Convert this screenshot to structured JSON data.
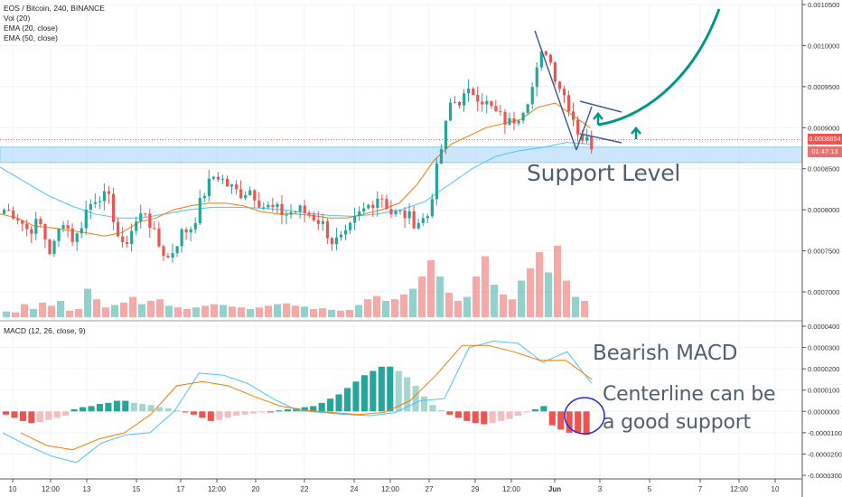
{
  "legend": {
    "symbol": "EOS / Bitcoin, 240, BINANCE",
    "indicators": [
      "Vol (20)",
      "EMA (20, close)",
      "EMA (50, close)"
    ]
  },
  "macd_legend": "MACD (12, 26, close, 9)",
  "annotations": {
    "support": "Support Level",
    "bearish": "Bearish MACD",
    "centerline_1": "Centerline can be",
    "centerline_2": "a good support"
  },
  "price_tags": {
    "last_price": "0.0008854",
    "countdown": "01:47:13"
  },
  "colors": {
    "up": "#26a69a",
    "down": "#ef5350",
    "ema20": "#f57c00",
    "ema50": "#4fc3f7",
    "support_zone": "#bbdefb",
    "drawing": "#009688",
    "trendline": "#3d6098"
  },
  "chart_data": [
    {
      "type": "candlestick",
      "title": "EOS / Bitcoin, 240, BINANCE",
      "y_ticks": [
        "0.0010500",
        "0.0010000",
        "0.0009500",
        "0.0009000",
        "0.0008500",
        "0.0008000",
        "0.0007500",
        "0.0007000"
      ],
      "ylim": [
        0.00068,
        0.00105
      ],
      "x_ticks": [
        "10",
        "12:00",
        "13",
        "15",
        "17",
        "12:00",
        "20",
        "22",
        "24",
        "12:00",
        "27",
        "29",
        "12:00",
        "Jun",
        "3",
        "5",
        "7",
        "12:00",
        "10"
      ],
      "support_zone": [
        0.000862,
        0.000872
      ],
      "ohlc_anchor_closes": [
        0.0008,
        0.000795,
        0.000775,
        0.000785,
        0.000745,
        0.00079,
        0.00076,
        0.0008,
        0.00082,
        0.00081,
        0.00075,
        0.00078,
        0.0008,
        0.00076,
        0.00074,
        0.00077,
        0.00078,
        0.00082,
        0.000845,
        0.00083,
        0.00082,
        0.000825,
        0.000805,
        0.0008,
        0.000795,
        0.0008,
        0.000795,
        0.000785,
        0.00076,
        0.000765,
        0.00079,
        0.000805,
        0.00082,
        0.000795,
        0.000795,
        0.000785,
        0.00079,
        0.00086,
        0.00093,
        0.000935,
        0.000945,
        0.00093,
        0.000915,
        0.000905,
        0.00092,
        0.00095,
        0.001,
        0.00096,
        0.00093,
        0.00089,
        0.00088
      ],
      "ema20": [
        0.000795,
        0.00079,
        0.00078,
        0.000778,
        0.000775,
        0.000772,
        0.000768,
        0.000772,
        0.000785,
        0.00079,
        0.0008,
        0.000805,
        0.000808,
        0.000808,
        0.000805,
        0.000798,
        0.000795,
        0.000795,
        0.000793,
        0.00079,
        0.00079,
        0.000795,
        0.0008,
        0.000808,
        0.00083,
        0.00086,
        0.00088,
        0.00089,
        0.0009,
        0.000905,
        0.00091,
        0.000925,
        0.00093,
        0.000915,
        0.0009
      ],
      "ema50": [
        0.000852,
        0.000835,
        0.000818,
        0.000805,
        0.000795,
        0.00079,
        0.00079,
        0.000795,
        0.0008,
        0.000803,
        0.000803,
        0.000802,
        0.0008,
        0.000796,
        0.000793,
        0.000792,
        0.000795,
        0.0008,
        0.00081,
        0.00083,
        0.00085,
        0.000865,
        0.000872,
        0.000876,
        0.000882,
        0.00088
      ],
      "arrows": [
        "up",
        "up"
      ]
    },
    {
      "type": "histogram",
      "title": "Vol (20)",
      "values": [
        0.07,
        0.06,
        0.16,
        0.1,
        0.18,
        0.14,
        0.2,
        0.08,
        0.1,
        0.35,
        0.22,
        0.12,
        0.15,
        0.18,
        0.25,
        0.16,
        0.2,
        0.22,
        0.14,
        0.12,
        0.1,
        0.12,
        0.14,
        0.16,
        0.15,
        0.13,
        0.12,
        0.1,
        0.12,
        0.14,
        0.16,
        0.17,
        0.14,
        0.13,
        0.1,
        0.11,
        0.09,
        0.08,
        0.09,
        0.15,
        0.22,
        0.26,
        0.2,
        0.22,
        0.28,
        0.35,
        0.5,
        0.7,
        0.5,
        0.3,
        0.2,
        0.25,
        0.5,
        0.75,
        0.4,
        0.28,
        0.22,
        0.45,
        0.6,
        0.8,
        0.55,
        0.88,
        0.45,
        0.25,
        0.2
      ]
    },
    {
      "type": "line",
      "title": "MACD (12, 26, close, 9)",
      "y_ticks": [
        "0.0000400",
        "0.0000300",
        "0.0000200",
        "0.0000100",
        "0.0000000",
        "-0.0000100",
        "-0.0000200",
        "-0.0000300"
      ],
      "ylim": [
        -3.1e-05,
        4.1e-05
      ],
      "series": [
        {
          "values": [
            -1e-05,
            -1.6e-05,
            -2.1e-05,
            -2.4e-05,
            -1.5e-05,
            -1.1e-05,
            -1e-05,
            2e-07,
            1.8e-05,
            1.7e-05,
            1.3e-05,
            6e-06,
            5e-07,
            -5e-07,
            -1.5e-06,
            -2e-06,
            -5e-07,
            5e-06,
            6e-06,
            3e-05,
            3.3e-05,
            3.2e-05,
            2.3e-05,
            2.8e-05,
            1.3e-05
          ]
        },
        {
          "values": [
            -1e-05,
            -1.6e-05,
            -1.8e-05,
            -1.3e-05,
            -1e-05,
            -1.5e-06,
            1.2e-05,
            1.4e-05,
            1.2e-05,
            7e-06,
            2.5e-06,
            5e-07,
            -5e-07,
            -1.5e-06,
            -5e-07,
            5e-06,
            1.7e-05,
            3.1e-05,
            3.1e-05,
            2.8e-05,
            2.4e-05,
            2.4e-05,
            1.5e-05
          ]
        },
        {
          "values": [
            -1.5e-06,
            -3e-06,
            -4.5e-06,
            -5.5e-06,
            -5e-06,
            -4e-06,
            -3e-06,
            -2e-06,
            1e-06,
            2e-06,
            2.5e-06,
            3.5e-06,
            4e-06,
            5e-06,
            5e-06,
            4e-06,
            3.5e-06,
            3e-06,
            2e-06,
            1.5e-06,
            5e-07,
            -5e-07,
            -1.5e-06,
            -3e-06,
            -4.5e-06,
            -4e-06,
            -3e-06,
            -2e-06,
            -1.5e-06,
            -1e-06,
            -5e-07,
            -5e-07,
            5e-07,
            1e-06,
            1.5e-06,
            2e-06,
            2.5e-06,
            4e-06,
            6e-06,
            8e-06,
            1.1e-05,
            1.4e-05,
            1.7e-05,
            1.9e-05,
            2.1e-05,
            2.1e-05,
            1.9e-05,
            1.6e-05,
            1.2e-05,
            7e-06,
            3e-06,
            5e-07,
            -1.5e-06,
            -3e-06,
            -4.5e-06,
            -5.5e-06,
            -6e-06,
            -5.5e-06,
            -4.5e-06,
            -3.5e-06,
            -2e-06,
            -5e-07,
            1e-06,
            2.5e-06,
            -6.5e-06,
            -8.5e-06,
            -1e-05,
            -1e-05,
            -1.1e-05
          ]
        }
      ]
    }
  ]
}
